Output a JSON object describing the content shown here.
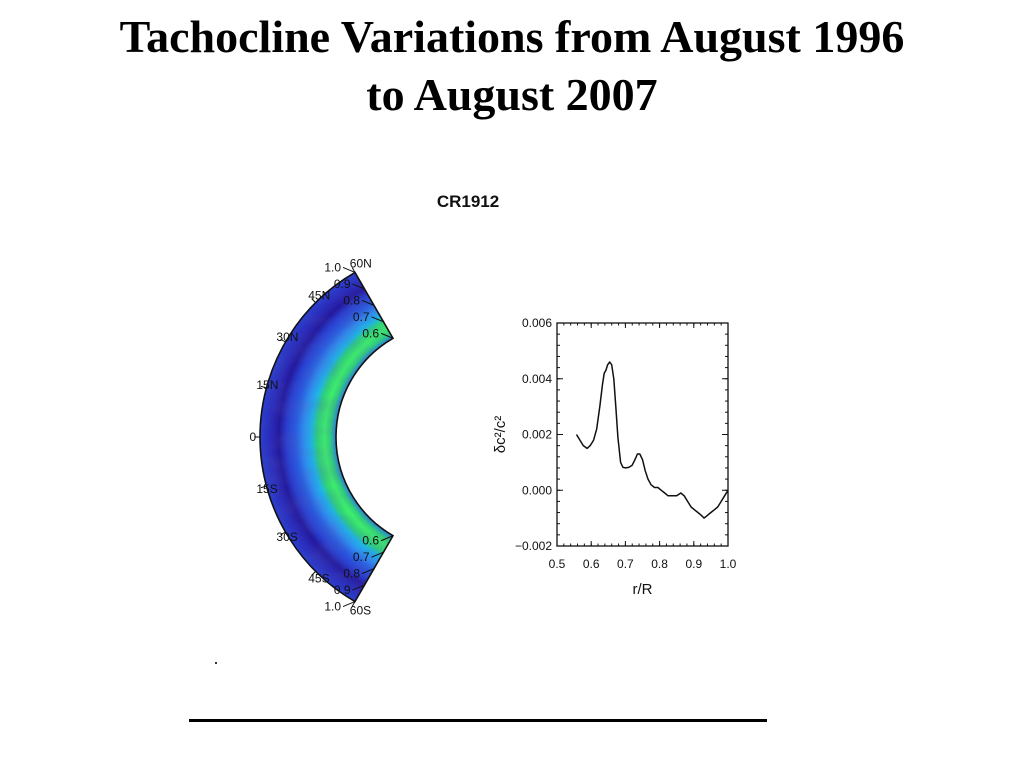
{
  "slide": {
    "title_line1": "Tachocline Variations from August 1996",
    "title_line2": "to August 2007"
  },
  "chart_data": [
    {
      "type": "heatmap",
      "title": "CR1912",
      "geometry": "polar-wedge",
      "radius_range": [
        0.6,
        1.0
      ],
      "radial_ticks": [
        "0.6",
        "0.7",
        "0.8",
        "0.9",
        "1.0"
      ],
      "latitude_range_deg": [
        -60,
        60
      ],
      "latitude_ticks": [
        {
          "deg": 60,
          "label": "60N"
        },
        {
          "deg": 45,
          "label": "45N"
        },
        {
          "deg": 30,
          "label": "30N"
        },
        {
          "deg": 15,
          "label": "15N"
        },
        {
          "deg": 0,
          "label": "0"
        },
        {
          "deg": -15,
          "label": "15S"
        },
        {
          "deg": -30,
          "label": "30S"
        },
        {
          "deg": -45,
          "label": "45S"
        },
        {
          "deg": -60,
          "label": "60S"
        }
      ],
      "radial_bands": [
        {
          "r": 0.6,
          "color": "#2a7fe0"
        },
        {
          "r": 0.63,
          "color": "#2fd07c"
        },
        {
          "r": 0.66,
          "color": "#3ef06a"
        },
        {
          "r": 0.7,
          "color": "#2fd07c"
        },
        {
          "r": 0.73,
          "color": "#1fb6e6"
        },
        {
          "r": 0.77,
          "color": "#2f8ff0"
        },
        {
          "r": 0.81,
          "color": "#2a5fe0"
        },
        {
          "r": 0.86,
          "color": "#2a3fd0"
        },
        {
          "r": 0.9,
          "color": "#24199c"
        },
        {
          "r": 0.94,
          "color": "#2a2ab8"
        },
        {
          "r": 1.0,
          "color": "#2a3fd0"
        }
      ]
    },
    {
      "type": "line",
      "title": "",
      "xlabel": "r/R",
      "ylabel": "δc²/c²",
      "xlim": [
        0.5,
        1.0
      ],
      "ylim": [
        -0.002,
        0.006
      ],
      "xticks": [
        0.5,
        0.6,
        0.7,
        0.8,
        0.9,
        1.0
      ],
      "xtick_labels": [
        "0.5",
        "0.6",
        "0.7",
        "0.8",
        "0.9",
        "1.0"
      ],
      "yticks": [
        -0.002,
        0.0,
        0.002,
        0.004,
        0.006
      ],
      "ytick_labels": [
        "−0.002",
        "0.000",
        "0.002",
        "0.004",
        "0.006"
      ],
      "grid": false,
      "series": [
        {
          "x": [
            0.557,
            0.567,
            0.577,
            0.588,
            0.597,
            0.607,
            0.616,
            0.625,
            0.633,
            0.638,
            0.643,
            0.648,
            0.654,
            0.66,
            0.666,
            0.672,
            0.678,
            0.686,
            0.693,
            0.7,
            0.71,
            0.72,
            0.728,
            0.735,
            0.742,
            0.75,
            0.758,
            0.766,
            0.775,
            0.785,
            0.795,
            0.805,
            0.815,
            0.825,
            0.835,
            0.85,
            0.862,
            0.872,
            0.882,
            0.892,
            0.902,
            0.912,
            0.922,
            0.93,
            0.94,
            0.95,
            0.96,
            0.97,
            0.98,
            0.99,
            1.0
          ],
          "y": [
            0.002,
            0.0018,
            0.0016,
            0.0015,
            0.0016,
            0.0018,
            0.0022,
            0.003,
            0.0038,
            0.0042,
            0.0043,
            0.0045,
            0.0046,
            0.0045,
            0.004,
            0.003,
            0.0019,
            0.001,
            0.00082,
            0.0008,
            0.00082,
            0.0009,
            0.0011,
            0.0013,
            0.0013,
            0.0011,
            0.0007,
            0.0004,
            0.0002,
            0.0001,
            0.0001,
            0.0,
            -0.0001,
            -0.0002,
            -0.0002,
            -0.0002,
            -0.0001,
            -0.0002,
            -0.0004,
            -0.0006,
            -0.0007,
            -0.0008,
            -0.0009,
            -0.001,
            -0.0009,
            -0.0008,
            -0.0007,
            -0.0006,
            -0.0004,
            -0.0002,
            0.0
          ]
        }
      ]
    }
  ]
}
